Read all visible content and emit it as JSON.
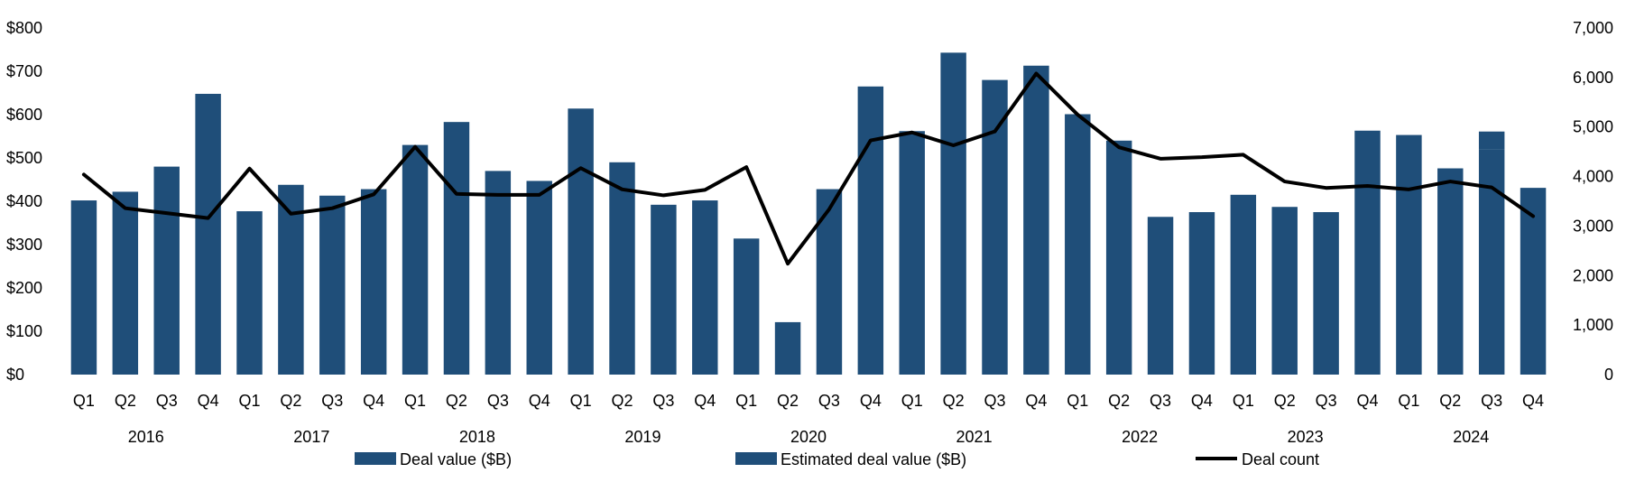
{
  "chart_data": {
    "type": "bar",
    "title": "",
    "xlabel": "",
    "ylabel": "",
    "ylim": [
      0,
      800
    ],
    "y2lim": [
      0,
      7000
    ],
    "y_ticks": [
      "$0",
      "$100",
      "$200",
      "$300",
      "$400",
      "$500",
      "$600",
      "$700",
      "$800"
    ],
    "y2_ticks": [
      "0",
      "1,000",
      "2,000",
      "3,000",
      "4,000",
      "5,000",
      "6,000",
      "7,000"
    ],
    "years": [
      "2016",
      "2017",
      "2018",
      "2019",
      "2020",
      "2021",
      "2022",
      "2023",
      "2024"
    ],
    "categories": [
      "Q1",
      "Q2",
      "Q3",
      "Q4",
      "Q1",
      "Q2",
      "Q3",
      "Q4",
      "Q1",
      "Q2",
      "Q3",
      "Q4",
      "Q1",
      "Q2",
      "Q3",
      "Q4",
      "Q1",
      "Q2",
      "Q3",
      "Q4",
      "Q1",
      "Q2",
      "Q3",
      "Q4",
      "Q1",
      "Q2",
      "Q3",
      "Q4",
      "Q1",
      "Q2",
      "Q3",
      "Q4",
      "Q1",
      "Q2",
      "Q3",
      "Q4"
    ],
    "series": [
      {
        "name": "Deal value ($B)",
        "type": "bar",
        "axis": "left",
        "color": "#1F4E79",
        "values": [
          402,
          422,
          480,
          648,
          377,
          438,
          413,
          428,
          530,
          583,
          470,
          447,
          614,
          490,
          392,
          402,
          314,
          121,
          428,
          665,
          562,
          743,
          680,
          713,
          601,
          540,
          364,
          375,
          415,
          387,
          375,
          563,
          553,
          476,
          519,
          431
        ]
      },
      {
        "name": "Estimated deal value ($B)",
        "type": "bar",
        "axis": "left",
        "color": "#1F4E79",
        "values": [
          0,
          0,
          0,
          0,
          0,
          0,
          0,
          0,
          0,
          0,
          0,
          0,
          0,
          0,
          0,
          0,
          0,
          0,
          0,
          0,
          0,
          0,
          0,
          0,
          0,
          0,
          0,
          0,
          0,
          0,
          0,
          0,
          0,
          0,
          42,
          0
        ]
      },
      {
        "name": "Deal count",
        "type": "line",
        "axis": "right",
        "color": "#000000",
        "values": [
          4040,
          3360,
          3260,
          3160,
          4160,
          3250,
          3360,
          3640,
          4600,
          3650,
          3630,
          3630,
          4170,
          3740,
          3620,
          3730,
          4190,
          2240,
          3340,
          4730,
          4890,
          4630,
          4910,
          6080,
          5250,
          4590,
          4360,
          4390,
          4440,
          3900,
          3770,
          3810,
          3740,
          3900,
          3780,
          3200
        ]
      }
    ],
    "legend_position": "bottom"
  }
}
